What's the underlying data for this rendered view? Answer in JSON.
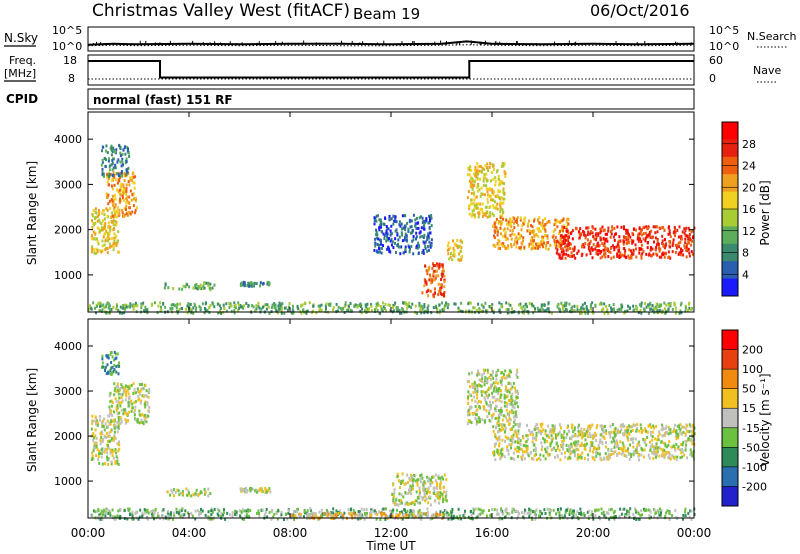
{
  "header": {
    "station": "Christmas Valley West (fitACF)",
    "beam": "Beam 19",
    "date": "06/Oct/2016"
  },
  "strip_labels": {
    "nsky": "N.Sky",
    "nsearch": "N.Search",
    "freq_line1": "Freq.",
    "freq_line2": "[MHz]",
    "nave": "Nave",
    "cpid": "CPID",
    "cpid_value": "normal (fast) 151 RF"
  },
  "colors": {
    "background": "#ffffff",
    "scatter_gray": "#c0c0bc",
    "power_scale": [
      "#1a1aff",
      "#2a5fb0",
      "#3a8a70",
      "#5cae5c",
      "#a8cc33",
      "#f0d020",
      "#f0a020",
      "#ee6010",
      "#e82010",
      "#ff0000"
    ],
    "velocity_scale": [
      "#2222cc",
      "#2a6fb0",
      "#2e8a58",
      "#6cc040",
      "#c0c0bc",
      "#f0c020",
      "#f08a10",
      "#e84010",
      "#ff0000"
    ]
  },
  "chart_data": [
    {
      "type": "line",
      "name": "noise-panel",
      "left_ticks": [
        "10^5",
        "10^0"
      ],
      "right_ticks": [
        "10^5",
        "10^0"
      ],
      "x": [
        0,
        1,
        2,
        4,
        6,
        8,
        10,
        12,
        14,
        15,
        16,
        18,
        20,
        22,
        24
      ],
      "series": [
        {
          "name": "N.Sky",
          "values": [
            1.3,
            1.5,
            1.4,
            1.5,
            1.4,
            1.5,
            1.5,
            1.4,
            1.5,
            2.0,
            1.5,
            1.4,
            1.5,
            1.4,
            1.5
          ]
        },
        {
          "name": "N.Search",
          "values": [
            1.1,
            1.2,
            1.1,
            1.2,
            1.1,
            1.2,
            1.1,
            1.1,
            1.2,
            1.3,
            1.2,
            1.1,
            1.2,
            1.1,
            1.2
          ]
        }
      ]
    },
    {
      "type": "line",
      "name": "freq-nave-panel",
      "left_ticks": [
        "18",
        "8"
      ],
      "right_ticks": [
        "60",
        "0"
      ],
      "x": [
        0,
        2.85,
        2.85,
        15.1,
        15.1,
        24
      ],
      "series": [
        {
          "name": "Freq.",
          "values": [
            16,
            16,
            10.5,
            10.5,
            16,
            16
          ]
        },
        {
          "name": "Nave",
          "values": [
            12,
            12,
            12,
            12,
            12,
            12
          ]
        }
      ]
    },
    {
      "type": "heatmap",
      "name": "power-panel",
      "ylabel": "Slant Range [km]",
      "y_ticks": [
        1000,
        2000,
        3000,
        4000
      ],
      "ylim": [
        180,
        4600
      ],
      "xlim": [
        0,
        24
      ],
      "colorbar_label": "Power [dB]",
      "colorbar_ticks": [
        4,
        8,
        12,
        16,
        20,
        24,
        28
      ],
      "regions": [
        {
          "x0": 0.1,
          "x1": 1.2,
          "y0": 1500,
          "y1": 2500,
          "level": 5
        },
        {
          "x0": 0.7,
          "x1": 1.9,
          "y0": 2300,
          "y1": 3300,
          "level": 6
        },
        {
          "x0": 0.5,
          "x1": 1.6,
          "y0": 3200,
          "y1": 3900,
          "level": 2
        },
        {
          "x0": 3.0,
          "x1": 5.0,
          "y0": 700,
          "y1": 860,
          "level": 3
        },
        {
          "x0": 6.0,
          "x1": 7.2,
          "y0": 780,
          "y1": 870,
          "level": 2
        },
        {
          "x0": 11.3,
          "x1": 13.6,
          "y0": 1500,
          "y1": 2350,
          "level": 1
        },
        {
          "x0": 13.2,
          "x1": 14.1,
          "y0": 550,
          "y1": 1300,
          "level": 7
        },
        {
          "x0": 14.2,
          "x1": 14.8,
          "y0": 1350,
          "y1": 1800,
          "level": 5
        },
        {
          "x0": 15.0,
          "x1": 16.5,
          "y0": 2300,
          "y1": 3500,
          "level": 5
        },
        {
          "x0": 16.0,
          "x1": 19.0,
          "y0": 1600,
          "y1": 2300,
          "level": 6
        },
        {
          "x0": 18.5,
          "x1": 24.0,
          "y0": 1400,
          "y1": 2100,
          "level": 8
        },
        {
          "x0": 0.0,
          "x1": 24.0,
          "y0": 180,
          "y1": 420,
          "level": 3
        }
      ]
    },
    {
      "type": "heatmap",
      "name": "velocity-panel",
      "ylabel": "Slant Range [km]",
      "y_ticks": [
        1000,
        2000,
        3000,
        4000
      ],
      "ylim": [
        180,
        4600
      ],
      "xlim": [
        0,
        24
      ],
      "colorbar_label": "Velocity [m s⁻¹]",
      "colorbar_ticks": [
        200,
        100,
        50,
        15,
        -15,
        -50,
        -100,
        -200
      ],
      "regions": [
        {
          "x0": 0.1,
          "x1": 1.2,
          "y0": 1400,
          "y1": 2500,
          "level": 4
        },
        {
          "x0": 0.8,
          "x1": 2.4,
          "y0": 2300,
          "y1": 3200,
          "level": 4
        },
        {
          "x0": 0.5,
          "x1": 1.2,
          "y0": 3400,
          "y1": 3900,
          "level": 2
        },
        {
          "x0": 3.0,
          "x1": 5.0,
          "y0": 700,
          "y1": 860,
          "level": 4
        },
        {
          "x0": 6.0,
          "x1": 7.2,
          "y0": 780,
          "y1": 870,
          "level": 4
        },
        {
          "x0": 12.0,
          "x1": 14.2,
          "y0": 500,
          "y1": 1200,
          "level": 4
        },
        {
          "x0": 15.0,
          "x1": 17.0,
          "y0": 2300,
          "y1": 3500,
          "level": 4
        },
        {
          "x0": 16.0,
          "x1": 24.0,
          "y0": 1500,
          "y1": 2300,
          "level": 4
        },
        {
          "x0": 0.0,
          "x1": 24.0,
          "y0": 180,
          "y1": 420,
          "level": 3
        },
        {
          "x0": 8.0,
          "x1": 14.0,
          "y0": 200,
          "y1": 330,
          "level": 5
        }
      ]
    }
  ],
  "x_axis": {
    "tick_labels": [
      "00:00",
      "04:00",
      "08:00",
      "12:00",
      "16:00",
      "20:00",
      "00:00"
    ],
    "tick_hours": [
      0,
      4,
      8,
      12,
      16,
      20,
      24
    ],
    "label": "Time UT"
  }
}
